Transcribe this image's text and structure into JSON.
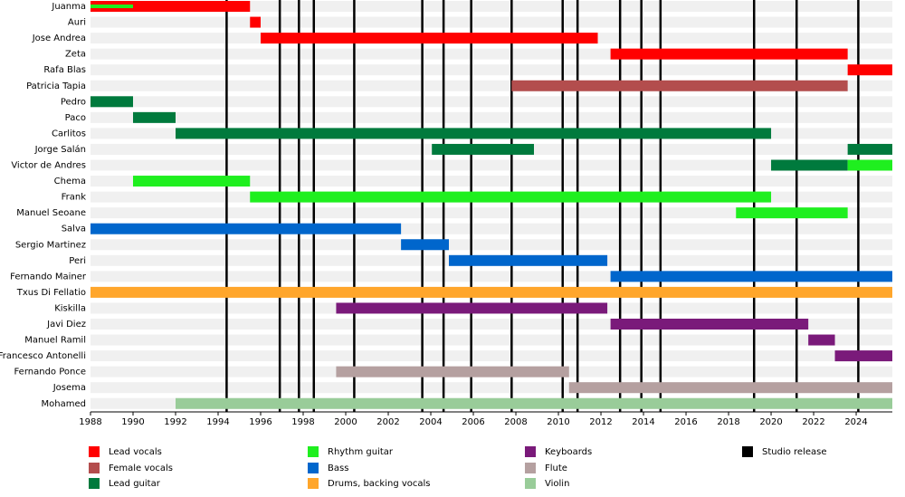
{
  "chart_data": {
    "type": "timeline",
    "categories": [
      "Juanma",
      "Auri",
      "Jose Andrea",
      "Zeta",
      "Rafa Blas",
      "Patricia Tapia",
      "Pedro",
      "Paco",
      "Carlitos",
      "Jorge Salán",
      "Victor de Andres",
      "Chema",
      "Frank",
      "Manuel Seoane",
      "Salva",
      "Sergio Martinez",
      "Peri",
      "Fernando Mainer",
      "Txus Di Fellatio",
      "Kiskilla",
      "Javi Diez",
      "Manuel Ramil",
      "Francesco Antonelli",
      "Fernando Ponce",
      "Josema",
      "Mohamed"
    ],
    "xlim": [
      1988,
      2025.7
    ],
    "xticks": [
      1988,
      1990,
      1992,
      1994,
      1996,
      1998,
      2000,
      2002,
      2004,
      2006,
      2008,
      2010,
      2012,
      2014,
      2016,
      2018,
      2020,
      2022,
      2024
    ],
    "series": [
      {
        "name": "Lead vocals",
        "color": "#ff0000",
        "ranges": [
          {
            "category": "Juanma",
            "start": 1988,
            "end": 1995.5
          },
          {
            "category": "Auri",
            "start": 1995.5,
            "end": 1996
          },
          {
            "category": "Jose Andrea",
            "start": 1996,
            "end": 2011.85
          },
          {
            "category": "Zeta",
            "start": 2012.45,
            "end": 2023.6
          },
          {
            "category": "Rafa Blas",
            "start": 2023.6,
            "end": 2025.7
          }
        ]
      },
      {
        "name": "Female vocals",
        "color": "#b34d4d",
        "ranges": [
          {
            "category": "Patricia Tapia",
            "start": 2007.8,
            "end": 2023.6
          }
        ]
      },
      {
        "name": "Lead guitar",
        "color": "#007a3d",
        "ranges": [
          {
            "category": "Pedro",
            "start": 1988,
            "end": 1990
          },
          {
            "category": "Paco",
            "start": 1990,
            "end": 1992
          },
          {
            "category": "Carlitos",
            "start": 1992,
            "end": 2020
          },
          {
            "category": "Jorge Salán",
            "start": 2004.05,
            "end": 2008.85
          },
          {
            "category": "Jorge Salán",
            "start": 2023.6,
            "end": 2025.7
          },
          {
            "category": "Victor de Andres",
            "start": 2020,
            "end": 2023.6
          }
        ]
      },
      {
        "name": "Rhythm guitar",
        "color": "#1fef1f",
        "ranges": [
          {
            "category": "Juanma",
            "start": 1988,
            "end": 1990,
            "thin": true
          },
          {
            "category": "Victor de Andres",
            "start": 2023.6,
            "end": 2025.7
          },
          {
            "category": "Chema",
            "start": 1990,
            "end": 1995.5
          },
          {
            "category": "Frank",
            "start": 1995.5,
            "end": 2020
          },
          {
            "category": "Manuel Seoane",
            "start": 2018.35,
            "end": 2023.6
          }
        ]
      },
      {
        "name": "Bass",
        "color": "#0066cc",
        "ranges": [
          {
            "category": "Salva",
            "start": 1988,
            "end": 2002.6
          },
          {
            "category": "Sergio Martinez",
            "start": 2002.6,
            "end": 2004.85
          },
          {
            "category": "Peri",
            "start": 2004.85,
            "end": 2012.3
          },
          {
            "category": "Fernando Mainer",
            "start": 2012.45,
            "end": 2025.7
          }
        ]
      },
      {
        "name": "Drums, backing vocals",
        "color": "#ffa62b",
        "ranges": [
          {
            "category": "Txus Di Fellatio",
            "start": 1988,
            "end": 2025.7
          }
        ]
      },
      {
        "name": "Keyboards",
        "color": "#7a1a7a",
        "ranges": [
          {
            "category": "Kiskilla",
            "start": 1999.55,
            "end": 2012.3
          },
          {
            "category": "Javi Diez",
            "start": 2012.45,
            "end": 2021.75
          },
          {
            "category": "Manuel Ramil",
            "start": 2021.75,
            "end": 2023.0
          },
          {
            "category": "Francesco Antonelli",
            "start": 2023.0,
            "end": 2025.7
          }
        ]
      },
      {
        "name": "Flute",
        "color": "#b5a0a0",
        "ranges": [
          {
            "category": "Fernando Ponce",
            "start": 1999.55,
            "end": 2010.5
          },
          {
            "category": "Josema",
            "start": 2010.5,
            "end": 2025.7
          }
        ]
      },
      {
        "name": "Violin",
        "color": "#99cc99",
        "ranges": [
          {
            "category": "Mohamed",
            "start": 1992,
            "end": 2025.7
          }
        ]
      }
    ],
    "releases": {
      "name": "Studio release",
      "color": "#000000",
      "x": [
        1994.4,
        1996.9,
        1997.8,
        1998.5,
        2000.4,
        2003.6,
        2004.6,
        2005.9,
        2007.8,
        2010.2,
        2010.9,
        2012.9,
        2013.9,
        2014.8,
        2019.2,
        2021.2,
        2024.1
      ]
    }
  }
}
